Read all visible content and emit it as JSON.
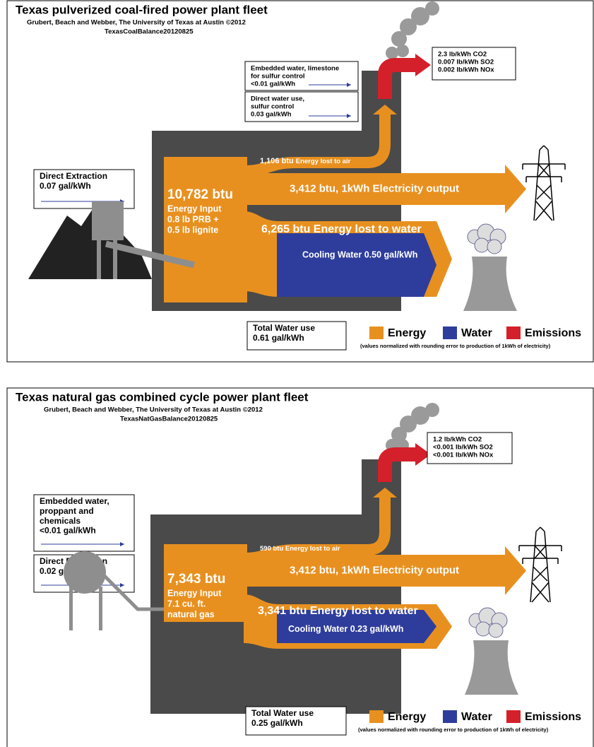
{
  "panels": [
    {
      "title": "Texas pulverized coal-fired power plant fleet",
      "credit": "Grubert, Beach and Webber, The University of Texas at Austin ©2012",
      "file": "TexasCoalBalance20120825",
      "emissions": [
        "2.3 lb/kWh CO2",
        "0.007 lb/kWh SO2",
        "0.002 lb/kWh NOx"
      ],
      "upper_boxes": [
        [
          "Embedded water, limestone",
          "for sulfur control",
          "<0.01 gal/kWh"
        ],
        [
          "Direct water use,",
          "sulfur control",
          "0.03 gal/kWh"
        ]
      ],
      "left_boxes": [
        [
          "Direct Extraction",
          "0.07 gal/kWh"
        ]
      ],
      "energy_input": {
        "amount": "10,782 btu",
        "lines": [
          "Energy Input",
          "0.8 lb PRB +",
          "0.5 lb lignite"
        ]
      },
      "air_loss": {
        "amount": "1,106 btu",
        "label": "Energy lost to air"
      },
      "electricity": "3,412 btu, 1kWh Electricity output",
      "water_loss": "6,265 btu Energy lost to water",
      "cooling_water": "Cooling Water 0.50 gal/kWh",
      "total_water": [
        "Total Water use",
        "0.61 gal/kWh"
      ],
      "legend": [
        "Energy",
        "Water",
        "Emissions"
      ],
      "note": "(values normalized with rounding error to production of 1kWh of electricity)"
    },
    {
      "title": "Texas natural gas combined cycle power plant fleet",
      "credit": "Grubert, Beach and Webber, The University of Texas at Austin ©2012",
      "file": "TexasNatGasBalance20120825",
      "emissions": [
        "1.2 lb/kWh CO2",
        "<0.001 lb/kWh SO2",
        "<0.001 lb/kWh NOx"
      ],
      "upper_boxes": [],
      "left_boxes": [
        [
          "Embedded water,",
          "proppant and",
          "chemicals",
          "<0.01 gal/kWh"
        ],
        [
          "Direct Extraction",
          "0.02 gal/kWh"
        ]
      ],
      "energy_input": {
        "amount": "7,343 btu",
        "lines": [
          "Energy Input",
          "7.1 cu. ft.",
          "natural gas"
        ]
      },
      "air_loss": {
        "amount": "590 btu",
        "label": "Energy lost to air"
      },
      "electricity": "3,412 btu, 1kWh Electricity output",
      "water_loss": "3,341 btu Energy lost to water",
      "cooling_water": "Cooling Water 0.23 gal/kWh",
      "total_water": [
        "Total Water use",
        "0.25 gal/kWh"
      ],
      "legend": [
        "Energy",
        "Water",
        "Emissions"
      ],
      "note": "(values normalized with rounding error to production of 1kWh of electricity)"
    }
  ]
}
